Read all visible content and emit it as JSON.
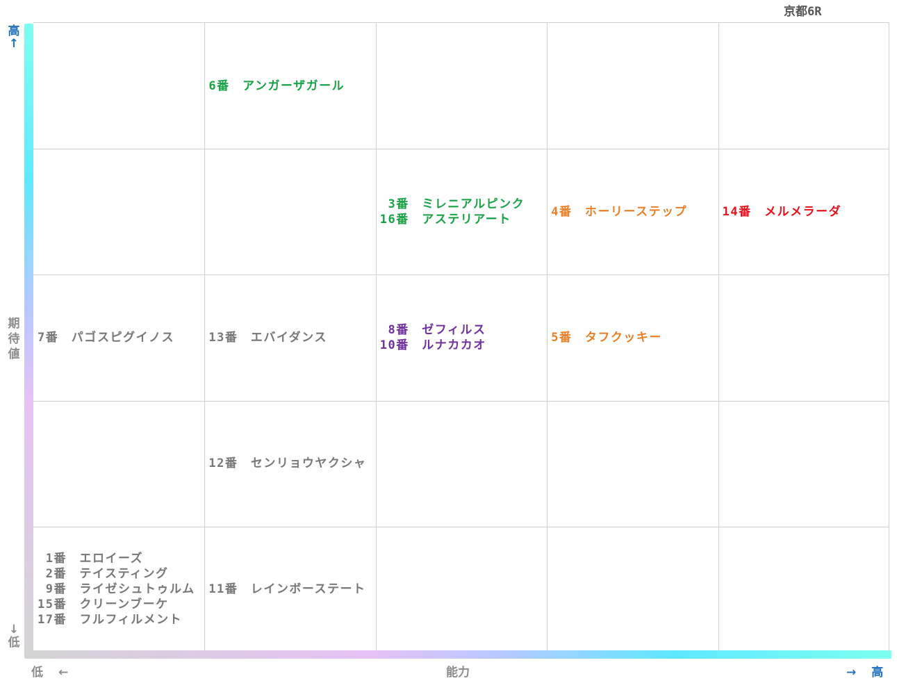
{
  "title": "京都6R",
  "axes": {
    "y_high": "高",
    "y_high_arrow": "↑",
    "y_label": [
      "期",
      "待",
      "値"
    ],
    "y_low_arrow": "↓",
    "y_low": "低",
    "x_low": "低",
    "x_low_arrow": "←",
    "x_label": "能力",
    "x_high_arrow": "→",
    "x_high": "高"
  },
  "colors": {
    "grey": "#777777",
    "green": "#17a245",
    "purple": "#7030a0",
    "orange": "#e8802a",
    "red": "#e8101a",
    "axis_text_blue": "#1f6fbf",
    "axis_text_grey": "#8c8c8c"
  },
  "chart_data": {
    "type": "table",
    "title": "京都6R",
    "xlabel": "能力",
    "ylabel": "期待値",
    "grid": true,
    "columns": 5,
    "rows": 5,
    "cells": [
      {
        "col": 1,
        "row": 0,
        "color": "green",
        "entries": [
          "6番　アンガーザガール"
        ]
      },
      {
        "col": 2,
        "row": 1,
        "color": "green",
        "entries": [
          " 3番　ミレニアルピンク",
          "16番　アステリアート"
        ]
      },
      {
        "col": 3,
        "row": 1,
        "color": "orange",
        "entries": [
          "4番　ホーリーステップ"
        ]
      },
      {
        "col": 4,
        "row": 1,
        "color": "red",
        "entries": [
          "14番　メルメラーダ"
        ]
      },
      {
        "col": 0,
        "row": 2,
        "color": "grey",
        "entries": [
          "7番　パゴスピグイノス"
        ]
      },
      {
        "col": 1,
        "row": 2,
        "color": "grey",
        "entries": [
          "13番　エバイダンス"
        ]
      },
      {
        "col": 2,
        "row": 2,
        "color": "purple",
        "entries": [
          " 8番　ゼフィルス",
          "10番　ルナカカオ"
        ]
      },
      {
        "col": 3,
        "row": 2,
        "color": "orange",
        "entries": [
          "5番　タフクッキー"
        ]
      },
      {
        "col": 1,
        "row": 3,
        "color": "grey",
        "entries": [
          "12番　センリョウヤクシャ"
        ]
      },
      {
        "col": 0,
        "row": 4,
        "color": "grey",
        "entries": [
          " 1番　エロイーズ",
          " 2番　テイスティング",
          " 9番　ライゼシュトゥルム",
          "15番　クリーンブーケ",
          "17番　フルフィルメント"
        ]
      },
      {
        "col": 1,
        "row": 4,
        "color": "grey",
        "entries": [
          "11番　レインボーステート"
        ]
      }
    ]
  }
}
